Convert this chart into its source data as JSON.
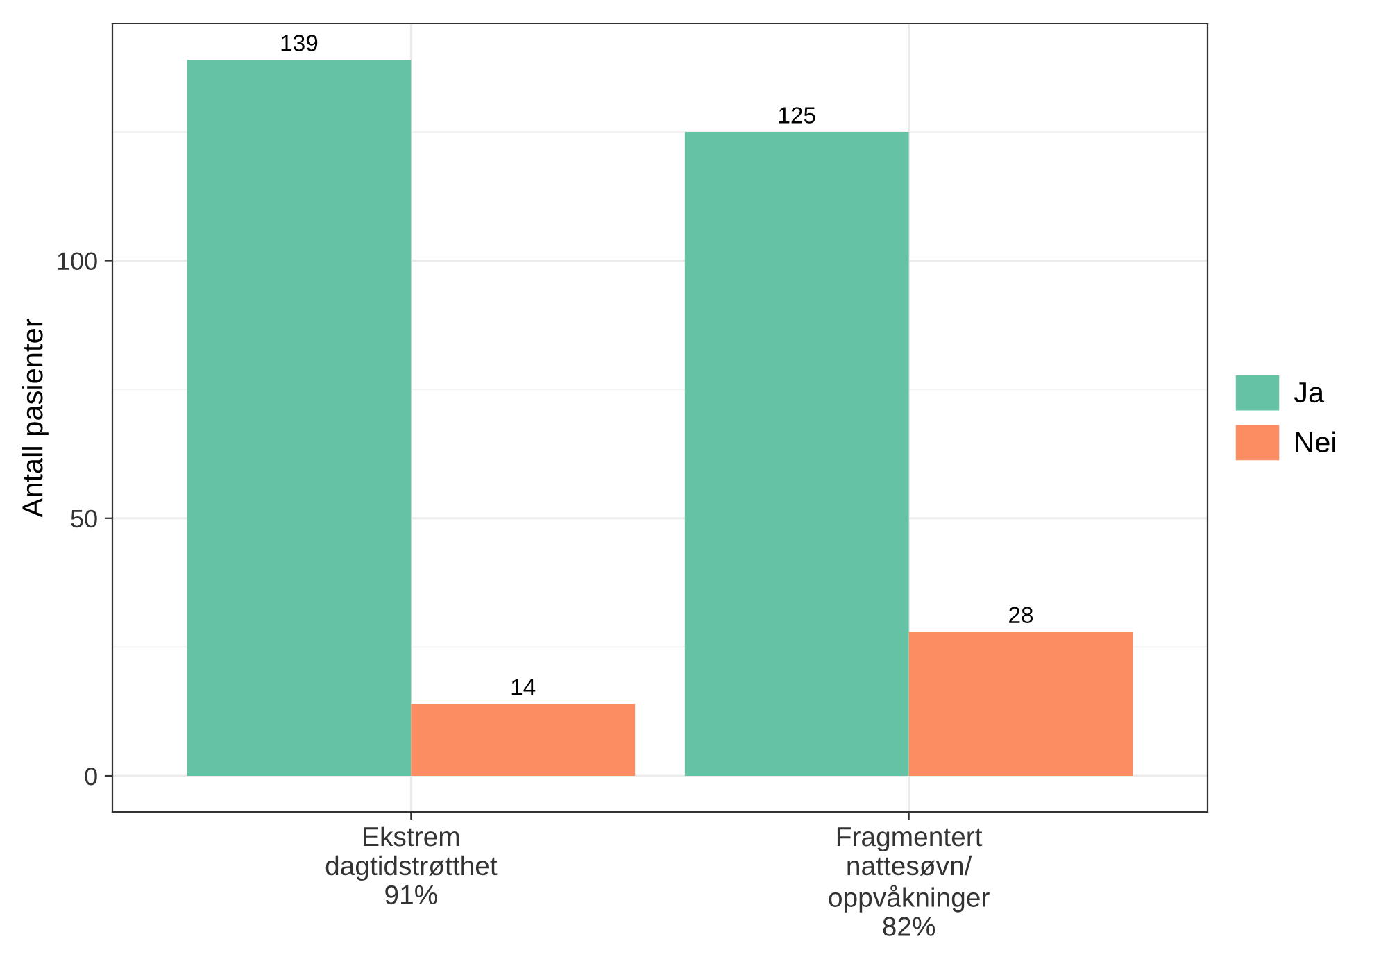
{
  "chart_data": {
    "type": "bar",
    "ylabel": "Antall pasienter",
    "categories": [
      "Ekstrem\ndagtidstrøtthet\n91%",
      "Fragmentert\nnattesøvn/\noppvåkninger\n82%"
    ],
    "series": [
      {
        "name": "Ja",
        "color": "#66c2a5",
        "values": [
          139,
          125
        ]
      },
      {
        "name": "Nei",
        "color": "#fc8d62",
        "values": [
          14,
          28
        ]
      }
    ],
    "ylim": [
      -7,
      146
    ],
    "yticks": [
      0,
      50,
      100
    ],
    "grid": true,
    "legend": "right",
    "data_labels": true
  }
}
